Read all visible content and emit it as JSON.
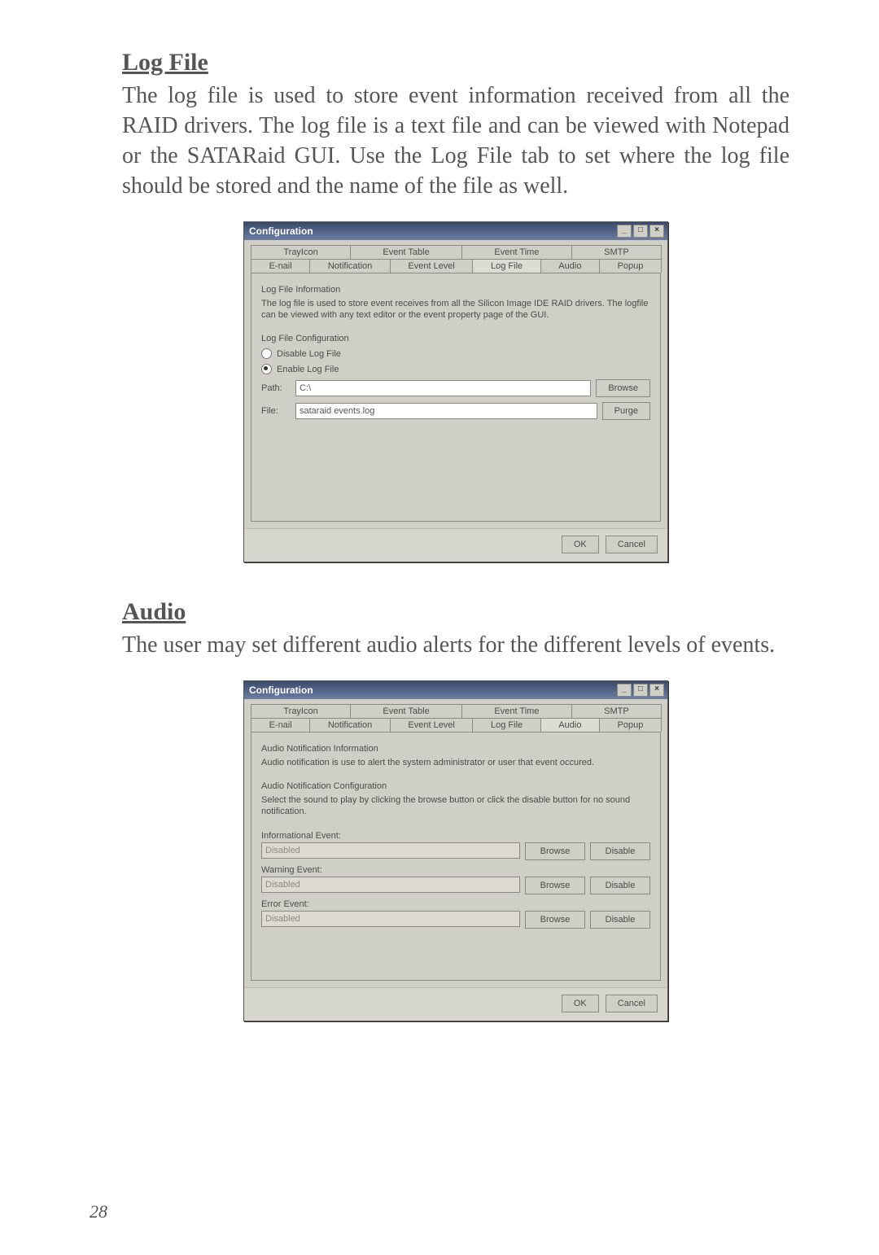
{
  "pageNumber": "28",
  "logfile": {
    "heading": "Log File",
    "body": "The log file is used to store event information received from all the RAID drivers. The log file is a text file and can be viewed with Notepad or the SATARaid GUI. Use the Log File tab to set where the log file should be stored and the name of the file as well."
  },
  "audio": {
    "heading": "Audio",
    "body": "The user may set different audio alerts for the different levels of events."
  },
  "dialog1": {
    "title": "Configuration",
    "tabsRow1": [
      "TrayIcon",
      "Event Table",
      "Event Time",
      "SMTP"
    ],
    "tabsRow2": [
      "E-nail",
      "Notification",
      "Event Level",
      "Log File",
      "Audio",
      "Popup"
    ],
    "activeTab": "Log File",
    "groupInfoLabel": "Log File Information",
    "infoText": "The log file is used to store event receives from all the Silicon Image IDE RAID drivers. The logfile can be viewed with any text editor or the event property page of the GUI.",
    "groupConfigLabel": "Log File Configuration",
    "disableLabel": "Disable Log File",
    "enableLabel": "Enable Log File",
    "pathLabel": "Path:",
    "pathValue": "C:\\",
    "fileLabel": "File:",
    "fileValue": "sataraid events.log",
    "browse": "Browse",
    "purge": "Purge",
    "ok": "OK",
    "cancel": "Cancel"
  },
  "dialog2": {
    "title": "Configuration",
    "tabsRow1": [
      "TrayIcon",
      "Event Table",
      "Event Time",
      "SMTP"
    ],
    "tabsRow2": [
      "E-nail",
      "Notification",
      "Event Level",
      "Log File",
      "Audio",
      "Popup"
    ],
    "activeTab": "Audio",
    "groupInfoLabel": "Audio Notification Information",
    "infoText": "Audio notification is use to alert the system administrator or user that event occured.",
    "groupConfigLabel": "Audio Notification Configuration",
    "configText": "Select the sound to play by clicking the browse button or click the disable button for no sound notification.",
    "rows": [
      {
        "label": "Informational Event:",
        "value": "Disabled"
      },
      {
        "label": "Warning Event:",
        "value": "Disabled"
      },
      {
        "label": "Error Event:",
        "value": "Disabled"
      }
    ],
    "browse": "Browse",
    "disable": "Disable",
    "ok": "OK",
    "cancel": "Cancel"
  }
}
